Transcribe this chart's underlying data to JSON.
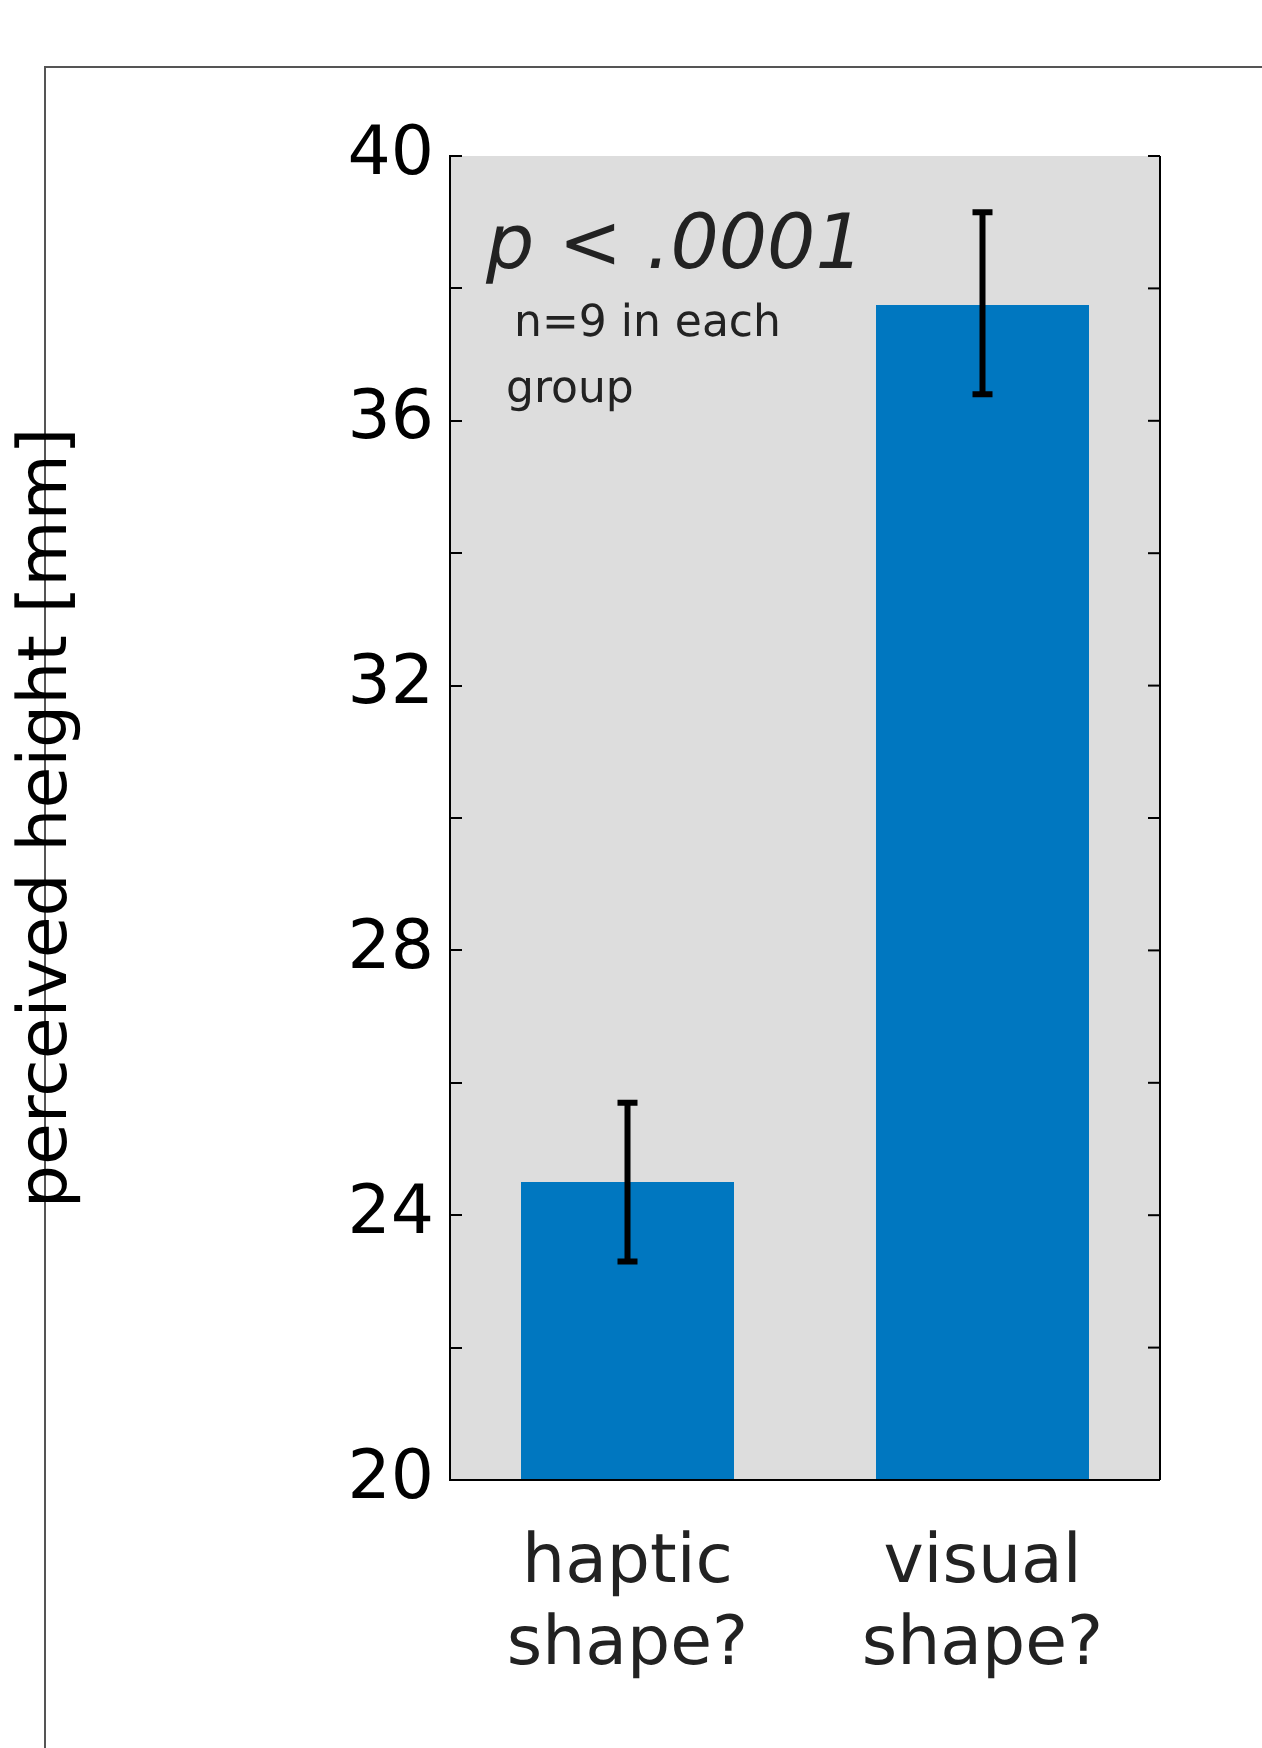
{
  "chart_data": {
    "type": "bar",
    "ylabel": "perceived height [mm]",
    "categories": [
      "haptic shape?",
      "visual shape?"
    ],
    "values": [
      24.5,
      37.75
    ],
    "color": "#0077c0",
    "errors": [
      [
        23.3,
        25.7
      ],
      [
        36.4,
        39.15
      ]
    ],
    "ylim": [
      20,
      40
    ],
    "yticks": [
      20,
      {
        "value": 22,
        "label": null
      },
      24,
      {
        "value": 26,
        "label": null
      },
      28,
      {
        "value": 30,
        "label": null
      },
      32,
      {
        "value": 34,
        "label": null
      },
      36,
      {
        "value": 38,
        "label": null
      },
      40
    ],
    "annotations": [
      "p < .0001",
      "n=9 in each group"
    ],
    "grid": false,
    "legend": false
  }
}
